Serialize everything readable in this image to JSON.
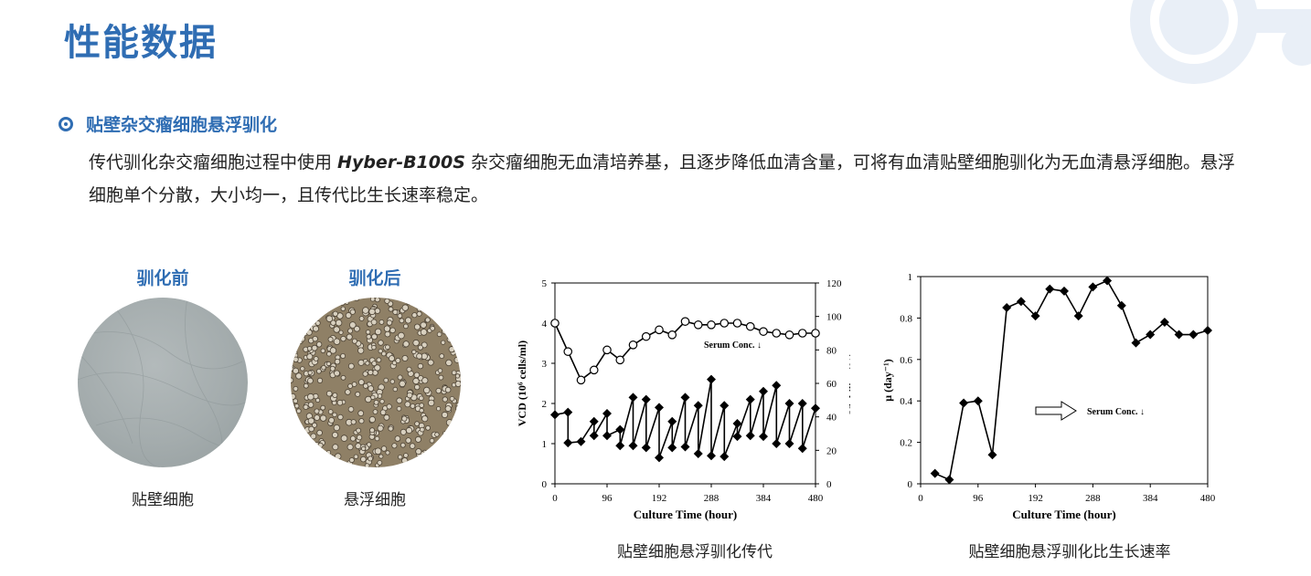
{
  "page_title": "性能数据",
  "section": {
    "icon": "target-bullet-icon",
    "title": "贴壁杂交瘤细胞悬浮驯化",
    "desc_before": "传代驯化杂交瘤细胞过程中使用 ",
    "product": "Hyber-B100S",
    "desc_after": " 杂交瘤细胞无血清培养基，且逐步降低血清含量，可将有血清贴壁细胞驯化为无血清悬浮细胞。悬浮细胞单个分散，大小均一，且传代比生长速率稳定。"
  },
  "images": [
    {
      "title": "驯化前",
      "caption": "贴壁细胞",
      "color": "#9fa7a8"
    },
    {
      "title": "驯化后",
      "caption": "悬浮细胞",
      "color": "#8f8066"
    }
  ],
  "colors": {
    "accent": "#2f6db3",
    "deco": "#e9eff7"
  },
  "chart_data": [
    {
      "type": "line",
      "caption": "贴壁细胞悬浮驯化传代",
      "xlabel": "Culture Time (hour)",
      "ylabel": "VCD (10⁶ cells/ml)",
      "y2label": "Viability (%)",
      "xlim": [
        0,
        480
      ],
      "ylim": [
        0,
        5
      ],
      "y2lim": [
        0,
        120
      ],
      "xticks": [
        "0",
        "96",
        "192",
        "288",
        "384",
        "480"
      ],
      "yticks": [
        "0",
        "1",
        "2",
        "3",
        "4",
        "5"
      ],
      "y2ticks": [
        "0",
        "20",
        "40",
        "60",
        "80",
        "100",
        "120"
      ],
      "annotation": "Serum Conc. ↓",
      "series": [
        {
          "axis": "y",
          "marker": "diamond",
          "x": [
            0,
            24,
            24,
            48,
            72,
            72,
            96,
            96,
            120,
            120,
            144,
            144,
            168,
            168,
            192,
            192,
            216,
            216,
            240,
            240,
            264,
            264,
            288,
            288,
            312,
            312,
            336,
            336,
            360,
            360,
            384,
            384,
            408,
            408,
            432,
            432,
            456,
            456,
            480
          ],
          "y": [
            1.72,
            1.78,
            1.02,
            1.05,
            1.55,
            1.2,
            1.75,
            1.2,
            1.35,
            0.95,
            2.15,
            0.95,
            2.1,
            0.9,
            1.9,
            0.65,
            1.55,
            0.9,
            2.15,
            0.92,
            1.95,
            0.75,
            2.6,
            0.7,
            1.95,
            0.68,
            1.5,
            1.18,
            2.1,
            1.2,
            2.3,
            1.18,
            2.45,
            1.0,
            2.0,
            1.0,
            2.0,
            0.88,
            1.88
          ]
        },
        {
          "axis": "y2",
          "marker": "circle",
          "x": [
            0,
            24,
            48,
            72,
            96,
            120,
            144,
            168,
            192,
            216,
            240,
            264,
            288,
            312,
            336,
            360,
            384,
            408,
            432,
            456,
            480
          ],
          "y": [
            96,
            79,
            62,
            68,
            80,
            74,
            83,
            88,
            92,
            89,
            97,
            95,
            95,
            96,
            96,
            94,
            91,
            90,
            89,
            90,
            90
          ]
        }
      ]
    },
    {
      "type": "line",
      "caption": "贴壁细胞悬浮驯化比生长速率",
      "xlabel": "Culture Time (hour)",
      "ylabel": "μ (day⁻¹)",
      "xlim": [
        0,
        480
      ],
      "ylim": [
        0,
        1
      ],
      "xticks": [
        "0",
        "96",
        "192",
        "288",
        "384",
        "480"
      ],
      "yticks": [
        "0",
        "0.2",
        "0.4",
        "0.6",
        "0.8",
        "1"
      ],
      "annotation": "Serum Conc. ↓",
      "series": [
        {
          "axis": "y",
          "marker": "diamond",
          "x": [
            24,
            48,
            72,
            96,
            120,
            144,
            168,
            192,
            216,
            240,
            264,
            288,
            312,
            336,
            360,
            384,
            408,
            432,
            456,
            480
          ],
          "y": [
            0.05,
            0.02,
            0.39,
            0.4,
            0.14,
            0.85,
            0.88,
            0.81,
            0.94,
            0.93,
            0.81,
            0.95,
            0.98,
            0.86,
            0.68,
            0.72,
            0.78,
            0.72,
            0.72,
            0.74
          ]
        }
      ]
    }
  ]
}
